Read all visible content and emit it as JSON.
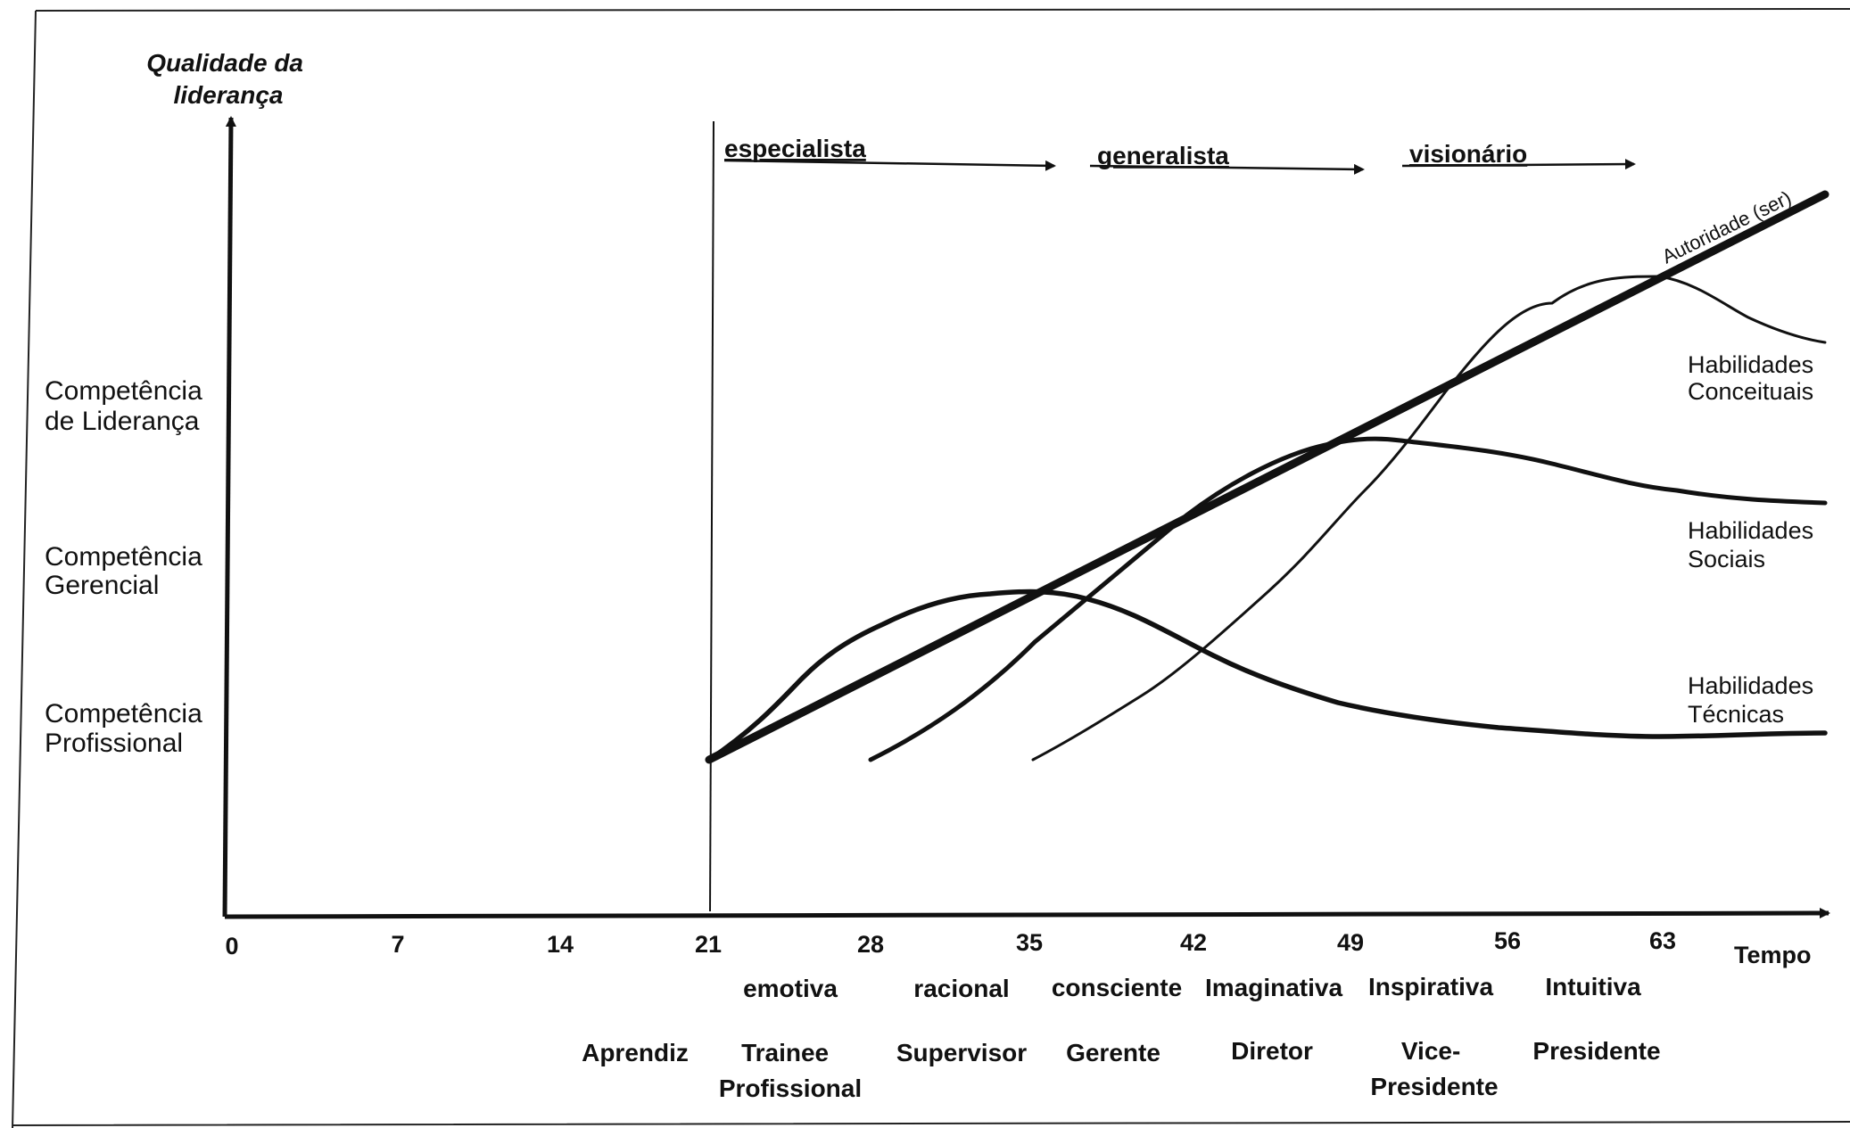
{
  "y_axis_label": [
    "Qualidade  da",
    "liderança"
  ],
  "x_axis_label": "Tempo",
  "competence_levels": [
    [
      "Competência",
      "de Liderança"
    ],
    [
      "Competência",
      "Gerencial"
    ],
    [
      "Competência",
      "Profissional"
    ]
  ],
  "x_ticks": [
    "0",
    "7",
    "14",
    "21",
    "28",
    "35",
    "42",
    "49",
    "56",
    "63"
  ],
  "phases": [
    "especialista",
    "generalista",
    "visionário"
  ],
  "thinking_modes": [
    "emotiva",
    "racional",
    "consciente",
    "Imaginativa",
    "Inspirativa",
    "Intuitiva"
  ],
  "roles": [
    [
      "Aprendiz"
    ],
    [
      "Trainee",
      "Profissional"
    ],
    [
      "Supervisor"
    ],
    [
      "Gerente"
    ],
    [
      "Diretor"
    ],
    [
      "Vice-",
      "Presidente"
    ],
    [
      "Presidente"
    ]
  ],
  "authority_label": "Autoridade (ser)",
  "skill_curves": [
    [
      "Habilidades",
      "Conceituais"
    ],
    [
      "Habilidades",
      "Sociais"
    ],
    [
      "Habilidades",
      "Técnicas"
    ]
  ]
}
